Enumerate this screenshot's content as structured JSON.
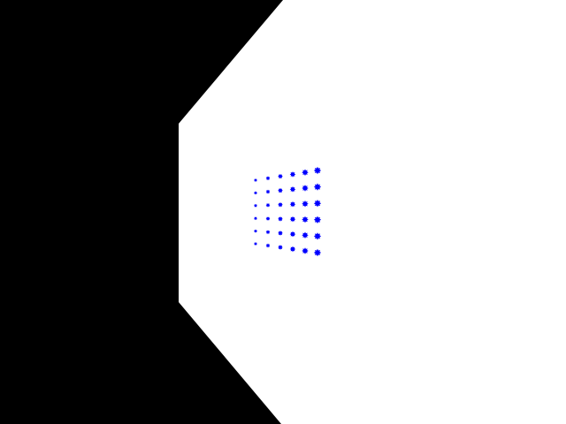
{
  "scene": {
    "colors": {
      "background": "#000000",
      "wall": "#ffffff",
      "dots": "#0000ff"
    },
    "dot_grid": {
      "rows": 6,
      "columns": 6,
      "dot_shape": "star"
    }
  }
}
